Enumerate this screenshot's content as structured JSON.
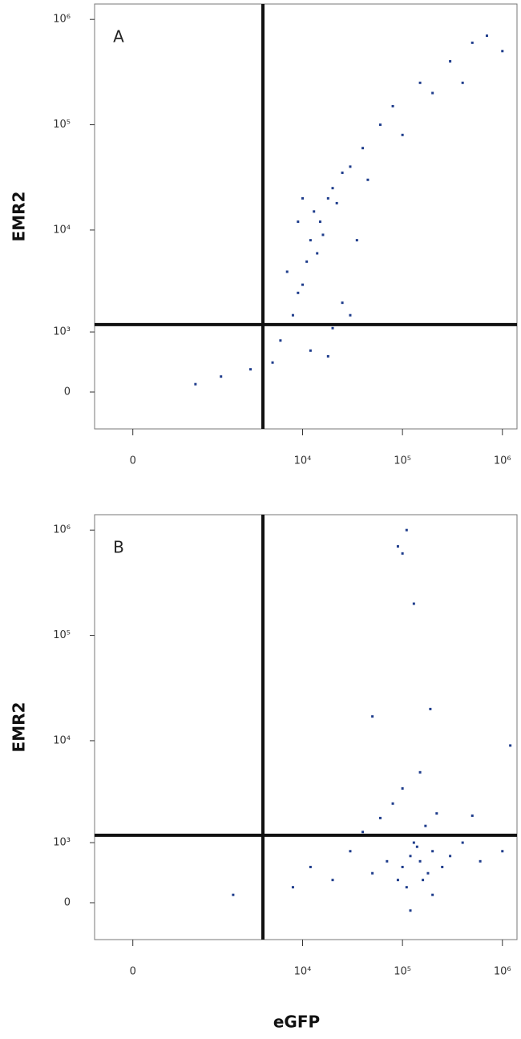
{
  "chart_data": [
    {
      "type": "scatter",
      "title": "A",
      "y_label": "EMR2",
      "color": "#1f3d8c",
      "xscale": "biexponential",
      "yscale": "biexponential",
      "xlim": [
        -400,
        1400000
      ],
      "ylim": [
        -520,
        1400000
      ],
      "xticks": [
        0,
        {
          "value": 10000,
          "label": "10⁴"
        },
        {
          "value": 100000,
          "label": "10⁵"
        },
        {
          "value": 1000000,
          "label": "10⁶"
        }
      ],
      "yticks": [
        0,
        {
          "value": 1000,
          "label": "10³"
        },
        {
          "value": 10000,
          "label": "10⁴"
        },
        {
          "value": 100000,
          "label": "10⁵"
        },
        {
          "value": 1000000,
          "label": "10⁶"
        }
      ],
      "gates": {
        "x": 4000,
        "y": 1200
      },
      "x": [
        8000,
        10000,
        12000,
        15000,
        13000,
        18000,
        20000,
        25000,
        30000,
        11000,
        9000,
        14000,
        16000,
        22000,
        40000,
        60000,
        80000,
        150000,
        300000,
        500000,
        700000,
        1000000,
        6000,
        5000,
        12000,
        20000,
        3000,
        1500,
        800,
        25000,
        35000,
        10000,
        7000,
        45000,
        200000,
        400000,
        100000,
        18000,
        30000,
        9000
      ],
      "y": [
        1500,
        3000,
        8000,
        12000,
        15000,
        20000,
        25000,
        35000,
        40000,
        5000,
        2500,
        6000,
        9000,
        18000,
        60000,
        100000,
        150000,
        250000,
        400000,
        600000,
        700000,
        500000,
        800,
        400,
        600,
        1100,
        300,
        200,
        100,
        2000,
        8000,
        20000,
        4000,
        30000,
        200000,
        250000,
        80000,
        500,
        1500,
        12000
      ]
    },
    {
      "type": "scatter",
      "title": "B",
      "y_label": "EMR2",
      "x_label": "eGFP",
      "color": "#1f3d8c",
      "xscale": "biexponential",
      "yscale": "biexponential",
      "xlim": [
        -400,
        1400000
      ],
      "ylim": [
        -520,
        1400000
      ],
      "xticks": [
        0,
        {
          "value": 10000,
          "label": "10⁴"
        },
        {
          "value": 100000,
          "label": "10⁵"
        },
        {
          "value": 1000000,
          "label": "10⁶"
        }
      ],
      "yticks": [
        0,
        {
          "value": 1000,
          "label": "10³"
        },
        {
          "value": 10000,
          "label": "10⁴"
        },
        {
          "value": 100000,
          "label": "10⁵"
        },
        {
          "value": 1000000,
          "label": "10⁶"
        }
      ],
      "gates": {
        "x": 4000,
        "y": 1200
      },
      "x": [
        100000,
        120000,
        150000,
        180000,
        200000,
        90000,
        130000,
        160000,
        250000,
        70000,
        110000,
        140000,
        300000,
        50000,
        30000,
        20000,
        12000,
        170000,
        220000,
        80000,
        100000,
        150000,
        60000,
        400000,
        600000,
        1000000,
        200000,
        120000,
        8000,
        190000,
        50000,
        130000,
        110000,
        100000,
        90000,
        1200000,
        2000,
        500000,
        40000,
        160000
      ],
      "y": [
        500,
        700,
        600,
        400,
        800,
        300,
        1000,
        1200,
        500,
        600,
        200,
        900,
        700,
        400,
        800,
        300,
        500,
        1500,
        2000,
        2500,
        3500,
        5000,
        1800,
        1000,
        600,
        800,
        100,
        -100,
        200,
        20000,
        17000,
        200000,
        1000000,
        600000,
        700000,
        9000,
        100,
        1900,
        1300,
        300
      ]
    }
  ]
}
